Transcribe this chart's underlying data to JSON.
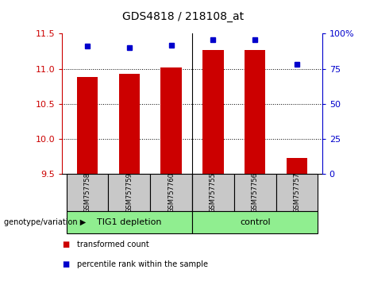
{
  "title": "GDS4818 / 218108_at",
  "samples": [
    "GSM757758",
    "GSM757759",
    "GSM757760",
    "GSM757755",
    "GSM757756",
    "GSM757757"
  ],
  "group_labels": [
    "TIG1 depletion",
    "control"
  ],
  "bar_values": [
    10.88,
    10.93,
    11.02,
    11.27,
    11.27,
    9.73
  ],
  "percentile_values": [
    91,
    90,
    92,
    96,
    96,
    78
  ],
  "ymin": 9.5,
  "ymax": 11.5,
  "y_ticks": [
    9.5,
    10.0,
    10.5,
    11.0,
    11.5
  ],
  "y_right_ticks": [
    0,
    25,
    50,
    75,
    100
  ],
  "bar_color": "#CC0000",
  "dot_color": "#0000CC",
  "tick_color_left": "#CC0000",
  "tick_color_right": "#0000CC",
  "label_genotype": "genotype/variation",
  "legend_bar": "transformed count",
  "legend_dot": "percentile rank within the sample",
  "bar_width": 0.5,
  "sample_bg": "#C8C8C8",
  "group_bg": "#90EE90"
}
